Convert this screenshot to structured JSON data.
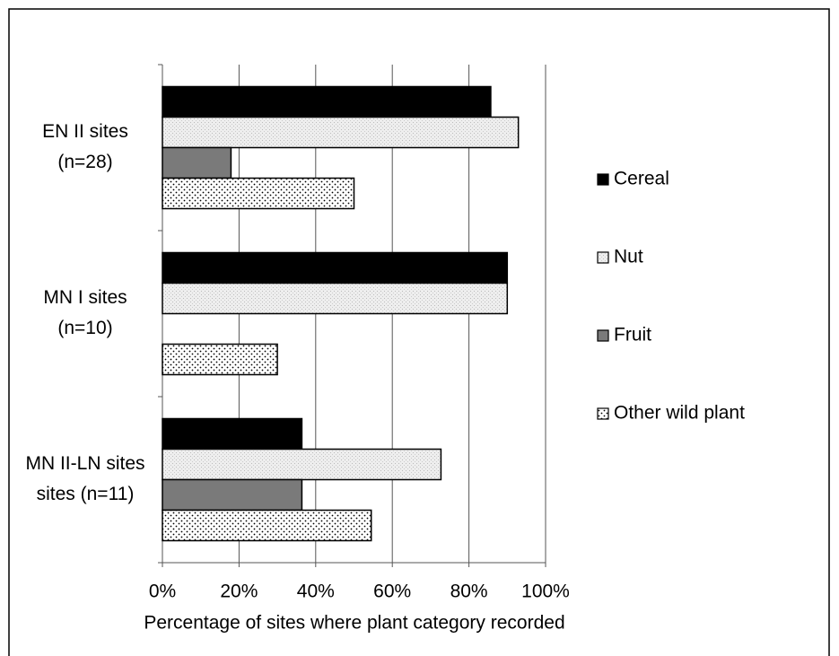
{
  "chart_data": {
    "type": "hbar",
    "xlabel": "Percentage of sites where plant category recorded",
    "categories": [
      [
        "EN II sites",
        "(n=28)"
      ],
      [
        "MN I sites",
        "(n=10)"
      ],
      [
        "MN II-LN sites",
        "sites (n=11)"
      ]
    ],
    "series": [
      {
        "name": "Cereal",
        "color": "#000000",
        "pattern": "solid",
        "values": [
          85.7,
          90,
          36.4
        ]
      },
      {
        "name": "Nut",
        "color": "#eeeeee",
        "pattern": "fine-texture",
        "values": [
          92.9,
          90,
          72.7
        ]
      },
      {
        "name": "Fruit",
        "color": "#7a7a7a",
        "pattern": "solid",
        "values": [
          17.9,
          0,
          36.4
        ]
      },
      {
        "name": "Other wild plant",
        "color": "#ffffff",
        "pattern": "dots",
        "values": [
          50,
          30,
          54.5
        ]
      }
    ],
    "xlim": [
      0,
      100
    ],
    "xticks": [
      {
        "value": 0,
        "label": "0%"
      },
      {
        "value": 20,
        "label": "20%"
      },
      {
        "value": 40,
        "label": "40%"
      },
      {
        "value": 60,
        "label": "60%"
      },
      {
        "value": 80,
        "label": "80%"
      },
      {
        "value": 100,
        "label": "100%"
      }
    ],
    "grid": true,
    "legend": "right"
  }
}
